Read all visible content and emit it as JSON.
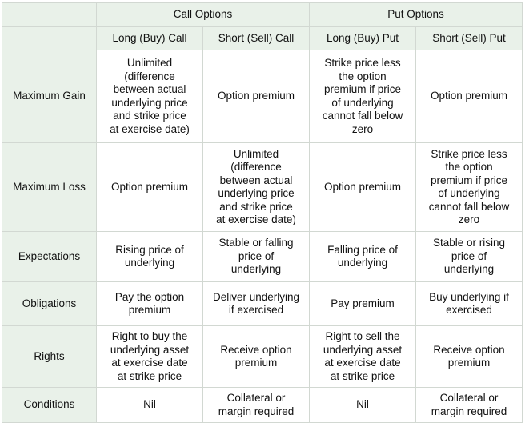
{
  "table": {
    "groups": [
      "Call Options",
      "Put Options"
    ],
    "columns": [
      "Long (Buy) Call",
      "Short (Sell) Call",
      "Long (Buy) Put",
      "Short (Sell) Put"
    ],
    "rows": [
      {
        "label": "Maximum Gain",
        "cells": [
          "Unlimited\n(difference\nbetween actual\nunderlying price\nand strike price\nat exercise date)",
          "Option premium",
          "Strike price less\nthe option\npremium if price\nof underlying\ncannot fall below\nzero",
          "Option premium"
        ]
      },
      {
        "label": "Maximum Loss",
        "cells": [
          "Option premium",
          "Unlimited\n(difference\nbetween actual\nunderlying price\nand strike price\nat exercise date)",
          "Option premium",
          "Strike price less\nthe option\npremium if price\nof underlying\ncannot fall below\nzero"
        ]
      },
      {
        "label": "Expectations",
        "cells": [
          "Rising price of\nunderlying",
          "Stable or falling\nprice of\nunderlying",
          "Falling price of\nunderlying",
          "Stable or rising\nprice of\nunderlying"
        ]
      },
      {
        "label": "Obligations",
        "cells": [
          "Pay the option\npremium",
          "Deliver underlying\nif exercised",
          "Pay premium",
          "Buy underlying if\nexercised"
        ]
      },
      {
        "label": "Rights",
        "cells": [
          "Right to buy the\nunderlying asset\nat exercise date\nat strike price",
          "Receive option\npremium",
          "Right to sell the\nunderlying asset\nat exercise date\nat strike price",
          "Receive option\npremium"
        ]
      },
      {
        "label": "Conditions",
        "cells": [
          "Nil",
          "Collateral or\nmargin required",
          "Nil",
          "Collateral or\nmargin required"
        ]
      }
    ]
  }
}
